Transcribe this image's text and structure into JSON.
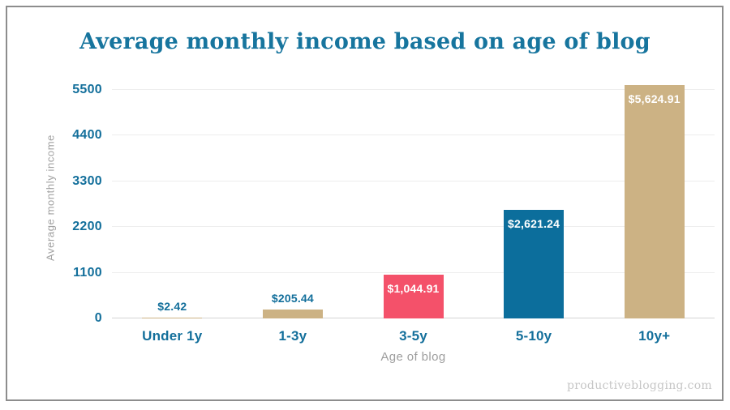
{
  "chart_data": {
    "type": "bar",
    "title": "Average monthly income based on age of blog",
    "xlabel": "Age of blog",
    "ylabel": "Average monthly income",
    "categories": [
      "Under 1y",
      "1-3y",
      "3-5y",
      "5-10y",
      "10y+"
    ],
    "values": [
      2.42,
      205.44,
      1044.91,
      2621.24,
      5624.91
    ],
    "value_labels": [
      "$2.42",
      "$205.44",
      "$1,044.91",
      "$2,621.24",
      "$5,624.91"
    ],
    "value_label_inside": [
      false,
      false,
      true,
      true,
      true
    ],
    "bar_colors": [
      "#ccb284",
      "#ccb284",
      "#f4516a",
      "#0c6e9c",
      "#ccb284"
    ],
    "y_ticks": [
      0,
      1100,
      2200,
      3300,
      4400,
      5500
    ],
    "ylim": [
      0,
      5800
    ],
    "grid": "horizontal",
    "legend": "none",
    "colors": {
      "title": "#17759e",
      "tick_label": "#136f9b",
      "axis_label": "#9e9e9e",
      "gridline": "#ededed",
      "baseline": "#d4d4d4",
      "value_label_outside": "#136f9b",
      "value_label_inside": "#ffffff",
      "frame_border": "#8d8d8d",
      "background": "#ffffff"
    }
  },
  "page": {
    "watermark": "productiveblogging.com"
  }
}
